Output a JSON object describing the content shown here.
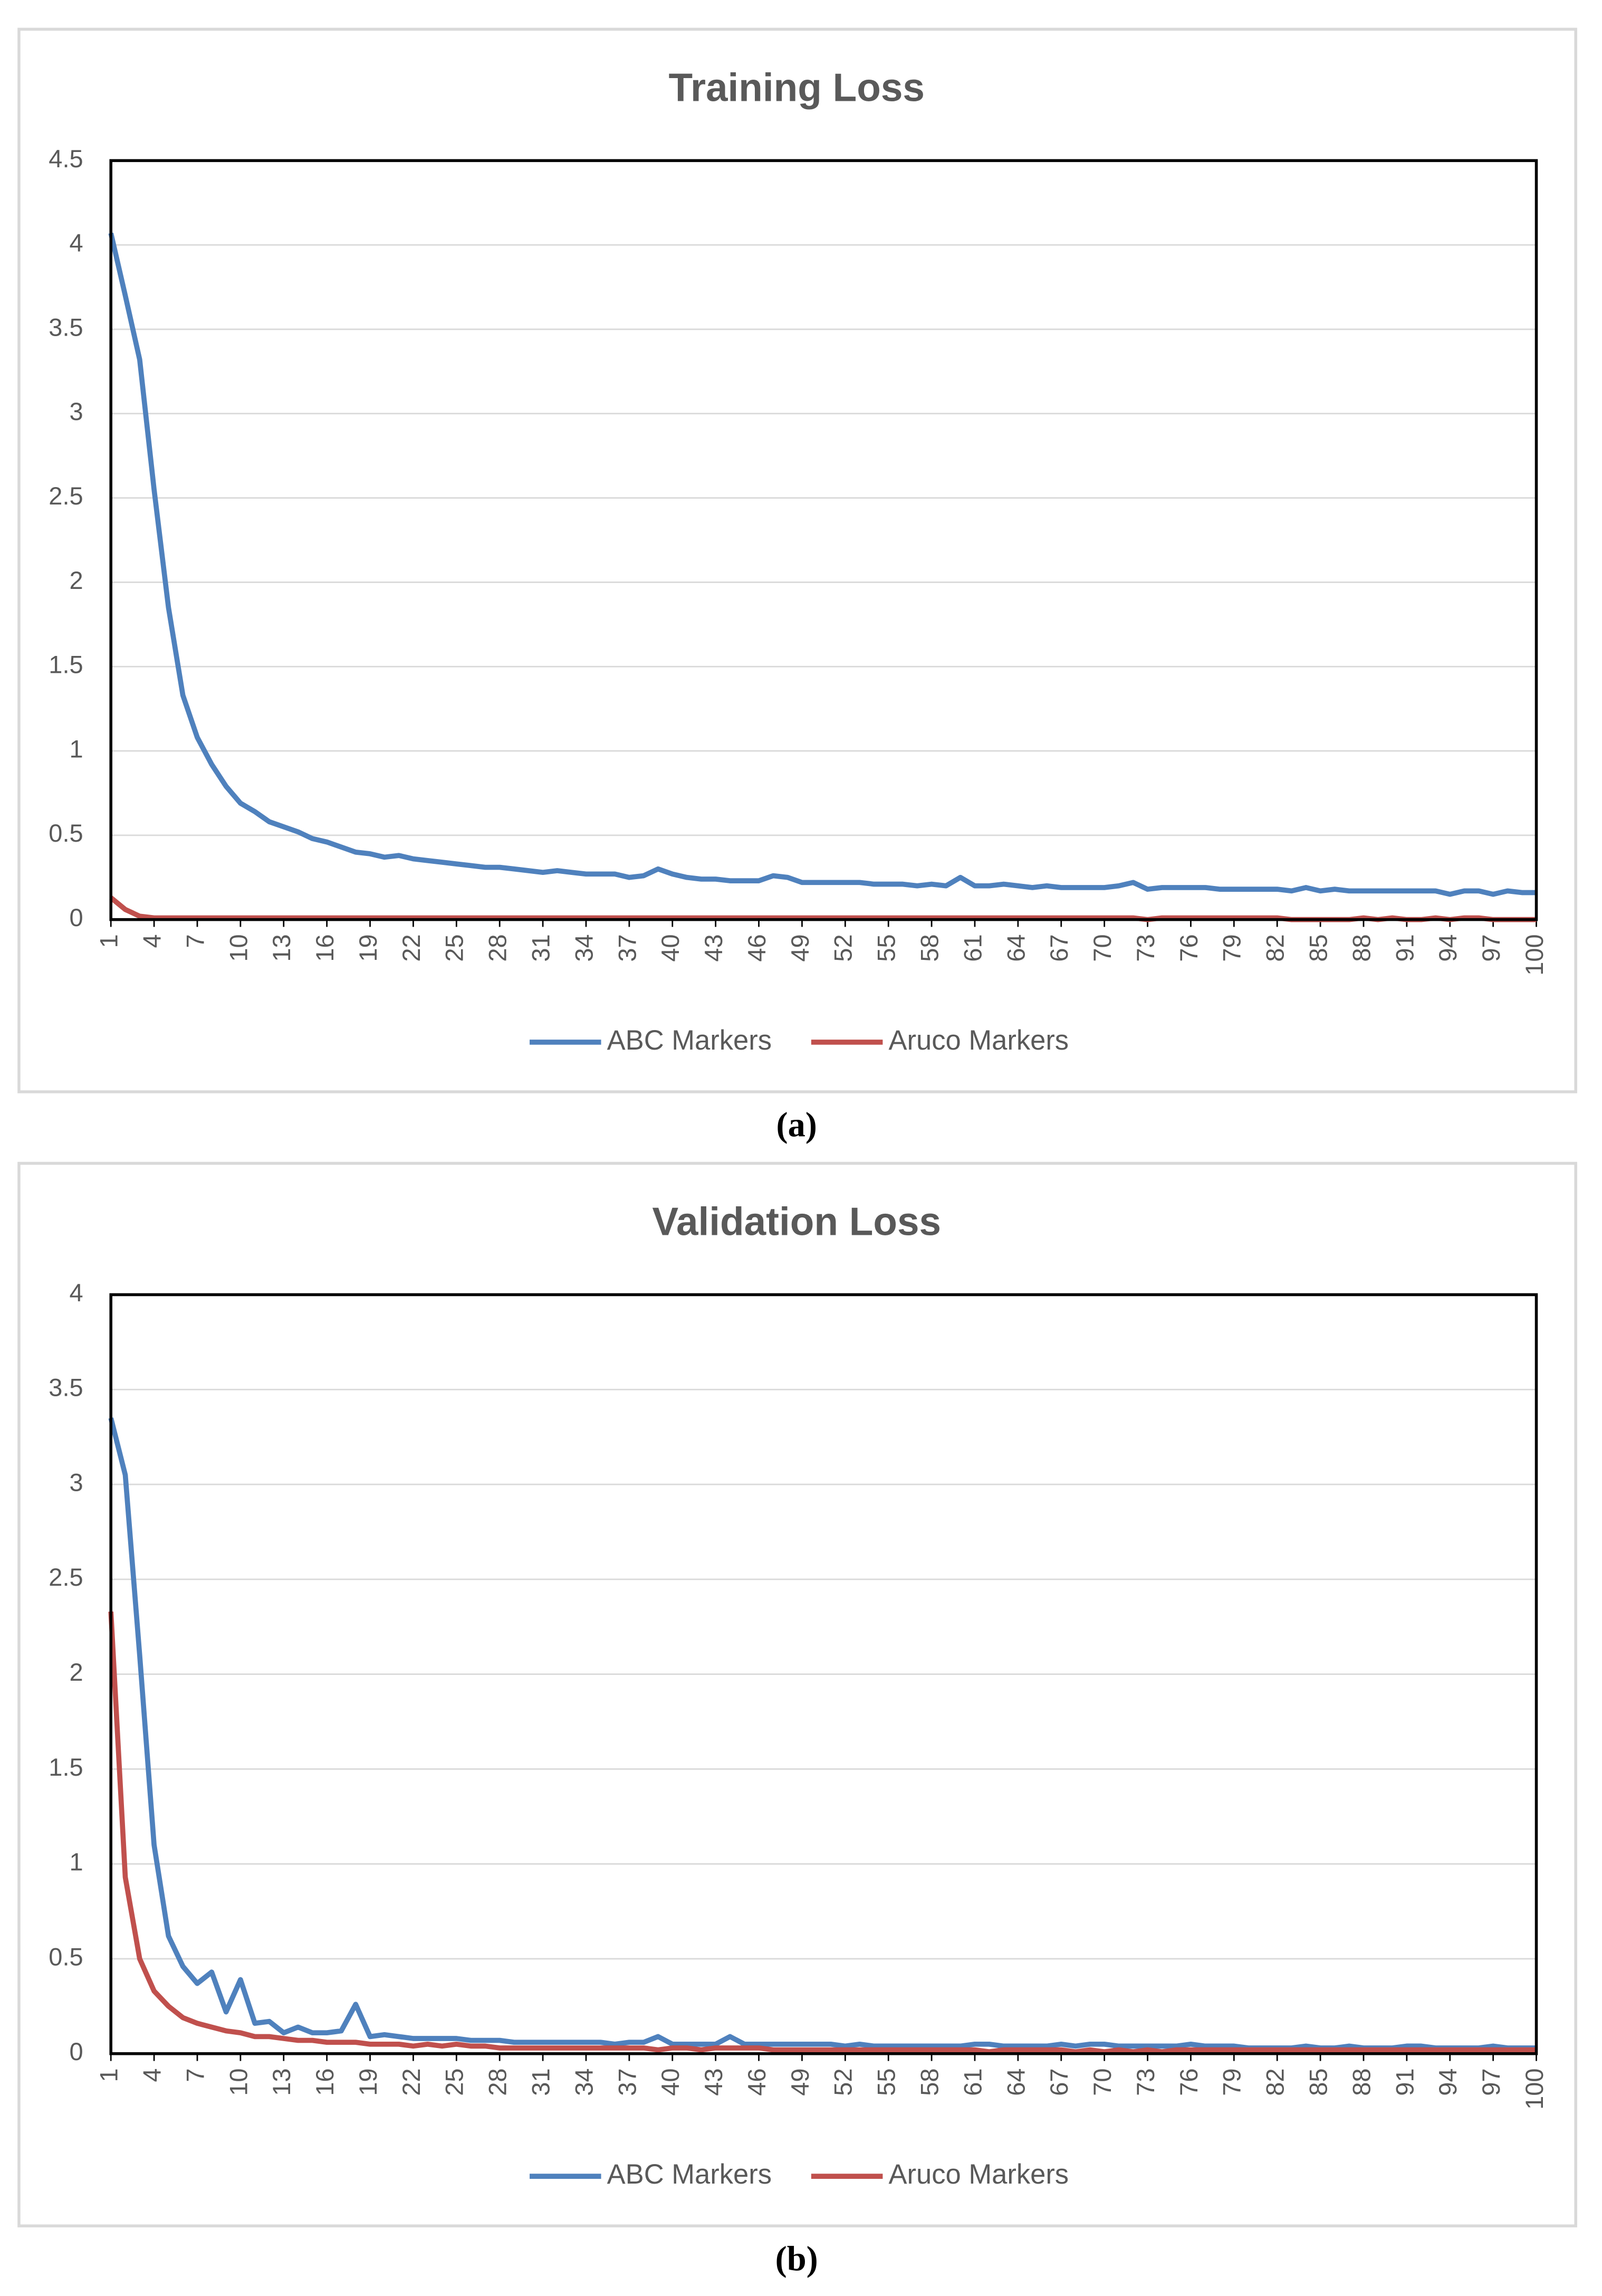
{
  "chart_data": [
    {
      "type": "line",
      "title": "Training Loss",
      "caption": "(a)",
      "x": [
        1,
        2,
        3,
        4,
        5,
        6,
        7,
        8,
        9,
        10,
        11,
        12,
        13,
        14,
        15,
        16,
        17,
        18,
        19,
        20,
        21,
        22,
        23,
        24,
        25,
        26,
        27,
        28,
        29,
        30,
        31,
        32,
        33,
        34,
        35,
        36,
        37,
        38,
        39,
        40,
        41,
        42,
        43,
        44,
        45,
        46,
        47,
        48,
        49,
        50,
        51,
        52,
        53,
        54,
        55,
        56,
        57,
        58,
        59,
        60,
        61,
        62,
        63,
        64,
        65,
        66,
        67,
        68,
        69,
        70,
        71,
        72,
        73,
        74,
        75,
        76,
        77,
        78,
        79,
        80,
        81,
        82,
        83,
        84,
        85,
        86,
        87,
        88,
        89,
        90,
        91,
        92,
        93,
        94,
        95,
        96,
        97,
        98,
        99,
        100
      ],
      "xlim": [
        1,
        100
      ],
      "xticks": [
        1,
        4,
        7,
        10,
        13,
        16,
        19,
        22,
        25,
        28,
        31,
        34,
        37,
        40,
        43,
        46,
        49,
        52,
        55,
        58,
        61,
        64,
        67,
        70,
        73,
        76,
        79,
        82,
        85,
        88,
        91,
        94,
        97,
        100
      ],
      "ylim": [
        0,
        4.5
      ],
      "yticks": [
        0,
        0.5,
        1,
        1.5,
        2,
        2.5,
        3,
        3.5,
        4,
        4.5
      ],
      "grid": true,
      "legend": "bottom",
      "series": [
        {
          "name": "ABC Markers",
          "color": "#4f81bd",
          "values": [
            4.07,
            3.7,
            3.32,
            2.55,
            1.85,
            1.33,
            1.08,
            0.92,
            0.79,
            0.69,
            0.64,
            0.58,
            0.55,
            0.52,
            0.48,
            0.46,
            0.43,
            0.4,
            0.39,
            0.37,
            0.38,
            0.36,
            0.35,
            0.34,
            0.33,
            0.32,
            0.31,
            0.31,
            0.3,
            0.29,
            0.28,
            0.29,
            0.28,
            0.27,
            0.27,
            0.27,
            0.25,
            0.26,
            0.3,
            0.27,
            0.25,
            0.24,
            0.24,
            0.23,
            0.23,
            0.23,
            0.26,
            0.25,
            0.22,
            0.22,
            0.22,
            0.22,
            0.22,
            0.21,
            0.21,
            0.21,
            0.2,
            0.21,
            0.2,
            0.25,
            0.2,
            0.2,
            0.21,
            0.2,
            0.19,
            0.2,
            0.19,
            0.19,
            0.19,
            0.19,
            0.2,
            0.22,
            0.18,
            0.19,
            0.19,
            0.19,
            0.19,
            0.18,
            0.18,
            0.18,
            0.18,
            0.18,
            0.17,
            0.19,
            0.17,
            0.18,
            0.17,
            0.17,
            0.17,
            0.17,
            0.17,
            0.17,
            0.17,
            0.15,
            0.17,
            0.17,
            0.15,
            0.17,
            0.16,
            0.16
          ]
        },
        {
          "name": "Aruco Markers",
          "color": "#c0504d",
          "values": [
            0.13,
            0.06,
            0.02,
            0.01,
            0.01,
            0.01,
            0.01,
            0.01,
            0.01,
            0.01,
            0.01,
            0.01,
            0.01,
            0.01,
            0.01,
            0.01,
            0.01,
            0.01,
            0.01,
            0.01,
            0.01,
            0.01,
            0.01,
            0.01,
            0.01,
            0.01,
            0.01,
            0.01,
            0.01,
            0.01,
            0.01,
            0.01,
            0.01,
            0.01,
            0.01,
            0.01,
            0.01,
            0.01,
            0.01,
            0.01,
            0.01,
            0.01,
            0.01,
            0.01,
            0.01,
            0.01,
            0.01,
            0.01,
            0.01,
            0.01,
            0.01,
            0.01,
            0.01,
            0.01,
            0.01,
            0.01,
            0.01,
            0.01,
            0.01,
            0.01,
            0.01,
            0.01,
            0.01,
            0.01,
            0.01,
            0.01,
            0.01,
            0.01,
            0.01,
            0.01,
            0.01,
            0.01,
            0,
            0.01,
            0.01,
            0.01,
            0.01,
            0.01,
            0.01,
            0.01,
            0.01,
            0.01,
            0,
            0,
            0,
            0,
            0,
            0.01,
            0,
            0.01,
            0,
            0,
            0.01,
            0,
            0.01,
            0.01,
            0,
            0,
            0,
            0
          ]
        }
      ]
    },
    {
      "type": "line",
      "title": "Validation Loss",
      "caption": "(b)",
      "x": [
        1,
        2,
        3,
        4,
        5,
        6,
        7,
        8,
        9,
        10,
        11,
        12,
        13,
        14,
        15,
        16,
        17,
        18,
        19,
        20,
        21,
        22,
        23,
        24,
        25,
        26,
        27,
        28,
        29,
        30,
        31,
        32,
        33,
        34,
        35,
        36,
        37,
        38,
        39,
        40,
        41,
        42,
        43,
        44,
        45,
        46,
        47,
        48,
        49,
        50,
        51,
        52,
        53,
        54,
        55,
        56,
        57,
        58,
        59,
        60,
        61,
        62,
        63,
        64,
        65,
        66,
        67,
        68,
        69,
        70,
        71,
        72,
        73,
        74,
        75,
        76,
        77,
        78,
        79,
        80,
        81,
        82,
        83,
        84,
        85,
        86,
        87,
        88,
        89,
        90,
        91,
        92,
        93,
        94,
        95,
        96,
        97,
        98,
        99,
        100
      ],
      "xlim": [
        1,
        100
      ],
      "xticks": [
        1,
        4,
        7,
        10,
        13,
        16,
        19,
        22,
        25,
        28,
        31,
        34,
        37,
        40,
        43,
        46,
        49,
        52,
        55,
        58,
        61,
        64,
        67,
        70,
        73,
        76,
        79,
        82,
        85,
        88,
        91,
        94,
        97,
        100
      ],
      "ylim": [
        0,
        4
      ],
      "yticks": [
        0,
        0.5,
        1,
        1.5,
        2,
        2.5,
        3,
        3.5,
        4
      ],
      "grid": true,
      "legend": "bottom",
      "series": [
        {
          "name": "ABC Markers",
          "color": "#4f81bd",
          "values": [
            3.35,
            3.05,
            2.1,
            1.1,
            0.62,
            0.46,
            0.37,
            0.43,
            0.22,
            0.39,
            0.16,
            0.17,
            0.11,
            0.14,
            0.11,
            0.11,
            0.12,
            0.26,
            0.09,
            0.1,
            0.09,
            0.08,
            0.08,
            0.08,
            0.08,
            0.07,
            0.07,
            0.07,
            0.06,
            0.06,
            0.06,
            0.06,
            0.06,
            0.06,
            0.06,
            0.05,
            0.06,
            0.06,
            0.09,
            0.05,
            0.05,
            0.05,
            0.05,
            0.09,
            0.05,
            0.05,
            0.05,
            0.05,
            0.05,
            0.05,
            0.05,
            0.04,
            0.05,
            0.04,
            0.04,
            0.04,
            0.04,
            0.04,
            0.04,
            0.04,
            0.05,
            0.05,
            0.04,
            0.04,
            0.04,
            0.04,
            0.05,
            0.04,
            0.05,
            0.05,
            0.04,
            0.04,
            0.04,
            0.04,
            0.04,
            0.05,
            0.04,
            0.04,
            0.04,
            0.03,
            0.03,
            0.03,
            0.03,
            0.04,
            0.03,
            0.03,
            0.04,
            0.03,
            0.03,
            0.03,
            0.04,
            0.04,
            0.03,
            0.03,
            0.03,
            0.03,
            0.04,
            0.03,
            0.03,
            0.03
          ]
        },
        {
          "name": "Aruco Markers",
          "color": "#c0504d",
          "values": [
            2.33,
            0.93,
            0.5,
            0.33,
            0.25,
            0.19,
            0.16,
            0.14,
            0.12,
            0.11,
            0.09,
            0.09,
            0.08,
            0.07,
            0.07,
            0.06,
            0.06,
            0.06,
            0.05,
            0.05,
            0.05,
            0.04,
            0.05,
            0.04,
            0.05,
            0.04,
            0.04,
            0.03,
            0.03,
            0.03,
            0.03,
            0.03,
            0.03,
            0.03,
            0.03,
            0.03,
            0.03,
            0.03,
            0.02,
            0.03,
            0.03,
            0.02,
            0.03,
            0.03,
            0.03,
            0.03,
            0.02,
            0.02,
            0.02,
            0.02,
            0.02,
            0.02,
            0.02,
            0.02,
            0.02,
            0.02,
            0.02,
            0.02,
            0.02,
            0.02,
            0.02,
            0.01,
            0.02,
            0.02,
            0.02,
            0.02,
            0.02,
            0.01,
            0.02,
            0.01,
            0.02,
            0.01,
            0.02,
            0.01,
            0.02,
            0.02,
            0.02,
            0.02,
            0.02,
            0.02,
            0.02,
            0.02,
            0.02,
            0.02,
            0.02,
            0.02,
            0.02,
            0.02,
            0.02,
            0.02,
            0.02,
            0.02,
            0.02,
            0.02,
            0.02,
            0.02,
            0.02,
            0.02,
            0.02,
            0.02
          ]
        }
      ]
    }
  ]
}
